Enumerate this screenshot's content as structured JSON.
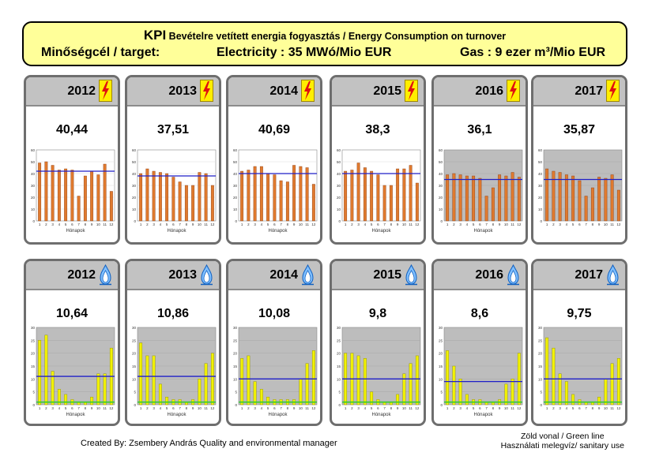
{
  "header": {
    "kpi_prefix": "KPI",
    "kpi_title": "Bevételre vetített energia fogyasztás / Energy Consumption on turnover",
    "target_label": "Minőségcél / target:",
    "electricity_target": "Electricity : 35 MWó/Mio EUR",
    "gas_target": "Gas : 9 ezer m³/Mio EUR"
  },
  "colors": {
    "header_bg": "#ffff99",
    "panel_head_bg": "#c2c2c2",
    "electricity_bar": "#e07a2e",
    "gas_bar": "#f2f200",
    "target_line": "#1f1fc8",
    "green_line": "#33cc33",
    "plot_bg_gray": "#bdbdbd"
  },
  "icons": {
    "electricity": "lightning-bolt-icon",
    "gas": "gas-flame-icon"
  },
  "panels": {
    "electricity": [
      {
        "year": "2012",
        "value": "40,44"
      },
      {
        "year": "2013",
        "value": "37,51"
      },
      {
        "year": "2014",
        "value": "40,69"
      },
      {
        "year": "2015",
        "value": "38,3"
      },
      {
        "year": "2016",
        "value": "36,1"
      },
      {
        "year": "2017",
        "value": "35,87"
      }
    ],
    "gas": [
      {
        "year": "2012",
        "value": "10,64"
      },
      {
        "year": "2013",
        "value": "10,86"
      },
      {
        "year": "2014",
        "value": "10,08"
      },
      {
        "year": "2015",
        "value": "9,8"
      },
      {
        "year": "2016",
        "value": "8,6"
      },
      {
        "year": "2017",
        "value": "9,75"
      }
    ]
  },
  "chart_data": [
    {
      "type": "bar",
      "group": "electricity",
      "year": "2012",
      "xlabel": "Hónapok",
      "ylim": [
        0,
        60
      ],
      "yticks": [
        0,
        10,
        20,
        30,
        40,
        50,
        60
      ],
      "categories": [
        "1",
        "2",
        "3",
        "4",
        "5",
        "6",
        "7",
        "8",
        "9",
        "10",
        "11",
        "12"
      ],
      "values": [
        49,
        50,
        47,
        43,
        44,
        43,
        21,
        38,
        42,
        39,
        48,
        25
      ],
      "target": 42,
      "plot_bg": "white"
    },
    {
      "type": "bar",
      "group": "electricity",
      "year": "2013",
      "xlabel": "Hónapok",
      "ylim": [
        0,
        60
      ],
      "yticks": [
        0,
        10,
        20,
        30,
        40,
        50,
        60
      ],
      "categories": [
        "1",
        "2",
        "3",
        "4",
        "5",
        "6",
        "7",
        "8",
        "9",
        "10",
        "11",
        "12"
      ],
      "values": [
        40,
        44,
        42,
        41,
        40,
        37,
        33,
        30,
        30,
        41,
        40,
        30
      ],
      "target": 38,
      "plot_bg": "white"
    },
    {
      "type": "bar",
      "group": "electricity",
      "year": "2014",
      "xlabel": "Hónapok",
      "ylim": [
        0,
        60
      ],
      "yticks": [
        0,
        10,
        20,
        30,
        40,
        50,
        60
      ],
      "categories": [
        "1",
        "2",
        "3",
        "4",
        "5",
        "6",
        "7",
        "8",
        "9",
        "10",
        "11",
        "12"
      ],
      "values": [
        42,
        43,
        46,
        46,
        40,
        39,
        34,
        33,
        47,
        46,
        45,
        31
      ],
      "target": 40,
      "plot_bg": "white"
    },
    {
      "type": "bar",
      "group": "electricity",
      "year": "2015",
      "xlabel": "Hónapok",
      "ylim": [
        0,
        60
      ],
      "yticks": [
        0,
        10,
        20,
        30,
        40,
        50,
        60
      ],
      "categories": [
        "1",
        "2",
        "3",
        "4",
        "5",
        "6",
        "7",
        "8",
        "9",
        "10",
        "11",
        "12"
      ],
      "values": [
        42,
        43,
        49,
        45,
        42,
        39,
        30,
        30,
        44,
        44,
        47,
        32
      ],
      "target": 40,
      "plot_bg": "white"
    },
    {
      "type": "bar",
      "group": "electricity",
      "year": "2016",
      "xlabel": "Hónapok",
      "ylim": [
        0,
        60
      ],
      "yticks": [
        0,
        10,
        20,
        30,
        40,
        50,
        60
      ],
      "categories": [
        "1",
        "2",
        "3",
        "4",
        "5",
        "6",
        "7",
        "8",
        "9",
        "10",
        "11",
        "12"
      ],
      "values": [
        39,
        40,
        39,
        38,
        38,
        36,
        21,
        28,
        39,
        38,
        41,
        37
      ],
      "target": 35,
      "plot_bg": "gray"
    },
    {
      "type": "bar",
      "group": "electricity",
      "year": "2017",
      "xlabel": "",
      "ylim": [
        0,
        60
      ],
      "yticks": [
        0,
        10,
        20,
        30,
        40,
        50,
        60
      ],
      "categories": [
        "1",
        "2",
        "3",
        "4",
        "5",
        "6",
        "7",
        "8",
        "9",
        "10",
        "11",
        "12"
      ],
      "values": [
        44,
        42,
        41,
        39,
        38,
        34,
        21,
        28,
        37,
        36,
        39,
        26
      ],
      "target": 35,
      "plot_bg": "gray"
    },
    {
      "type": "bar",
      "group": "gas",
      "year": "2012",
      "xlabel": "Hónapok",
      "ylim": [
        0,
        30
      ],
      "yticks": [
        0,
        5,
        10,
        15,
        20,
        25,
        30
      ],
      "categories": [
        "1",
        "2",
        "3",
        "4",
        "5",
        "6",
        "7",
        "8",
        "9",
        "10",
        "11",
        "12"
      ],
      "values": [
        25,
        27,
        13,
        6,
        4,
        2,
        1,
        1,
        3,
        12,
        12,
        22
      ],
      "target": 11,
      "baseline": 1,
      "plot_bg": "gray"
    },
    {
      "type": "bar",
      "group": "gas",
      "year": "2013",
      "xlabel": "Hónapok",
      "ylim": [
        0,
        30
      ],
      "yticks": [
        0,
        5,
        10,
        15,
        20,
        25,
        30
      ],
      "categories": [
        "1",
        "2",
        "3",
        "4",
        "5",
        "6",
        "7",
        "8",
        "9",
        "10",
        "11",
        "12"
      ],
      "values": [
        24,
        19,
        19,
        8,
        3,
        2,
        2,
        1,
        2,
        10,
        16,
        20
      ],
      "target": 11,
      "baseline": 1,
      "plot_bg": "gray"
    },
    {
      "type": "bar",
      "group": "gas",
      "year": "2014",
      "xlabel": "Hónapok",
      "ylim": [
        0,
        30
      ],
      "yticks": [
        0,
        5,
        10,
        15,
        20,
        25,
        30
      ],
      "categories": [
        "1",
        "2",
        "3",
        "4",
        "5",
        "6",
        "7",
        "8",
        "9",
        "10",
        "11",
        "12"
      ],
      "values": [
        18,
        19,
        9,
        6,
        3,
        2,
        2,
        2,
        2,
        10,
        16,
        21
      ],
      "target": 10,
      "baseline": 1,
      "plot_bg": "gray"
    },
    {
      "type": "bar",
      "group": "gas",
      "year": "2015",
      "xlabel": "Hónapok",
      "ylim": [
        0,
        30
      ],
      "yticks": [
        0,
        5,
        10,
        15,
        20,
        25,
        30
      ],
      "categories": [
        "1",
        "2",
        "3",
        "4",
        "5",
        "6",
        "7",
        "8",
        "9",
        "10",
        "11",
        "12"
      ],
      "values": [
        20,
        20,
        19,
        18,
        5,
        2,
        1,
        1,
        4,
        12,
        16,
        19
      ],
      "target": 10,
      "baseline": 1,
      "plot_bg": "gray"
    },
    {
      "type": "bar",
      "group": "gas",
      "year": "2016",
      "xlabel": "Hónapok",
      "ylim": [
        0,
        30
      ],
      "yticks": [
        0,
        5,
        10,
        15,
        20,
        25,
        30
      ],
      "categories": [
        "1",
        "2",
        "3",
        "4",
        "5",
        "6",
        "7",
        "8",
        "9",
        "10",
        "11",
        "12"
      ],
      "values": [
        21,
        15,
        10,
        4,
        2,
        2,
        1,
        1,
        2,
        8,
        10,
        20
      ],
      "target": 9,
      "baseline": 1,
      "plot_bg": "gray"
    },
    {
      "type": "bar",
      "group": "gas",
      "year": "2017",
      "xlabel": "",
      "ylim": [
        0,
        30
      ],
      "yticks": [
        0,
        5,
        10,
        15,
        20,
        25,
        30
      ],
      "categories": [
        "1",
        "2",
        "3",
        "4",
        "5",
        "6",
        "7",
        "8",
        "9",
        "10",
        "11",
        "12"
      ],
      "values": [
        26,
        22,
        12,
        9,
        4,
        2,
        1,
        1,
        3,
        10,
        16,
        18
      ],
      "target": 10,
      "baseline": 1,
      "plot_bg": "gray"
    }
  ],
  "footer": {
    "created_by": "Created By: Zsembery András Quality and environmental manager",
    "legend_line1": "Zöld vonal / Green line",
    "legend_line2": "Használati melegvíz/ sanitary use"
  }
}
